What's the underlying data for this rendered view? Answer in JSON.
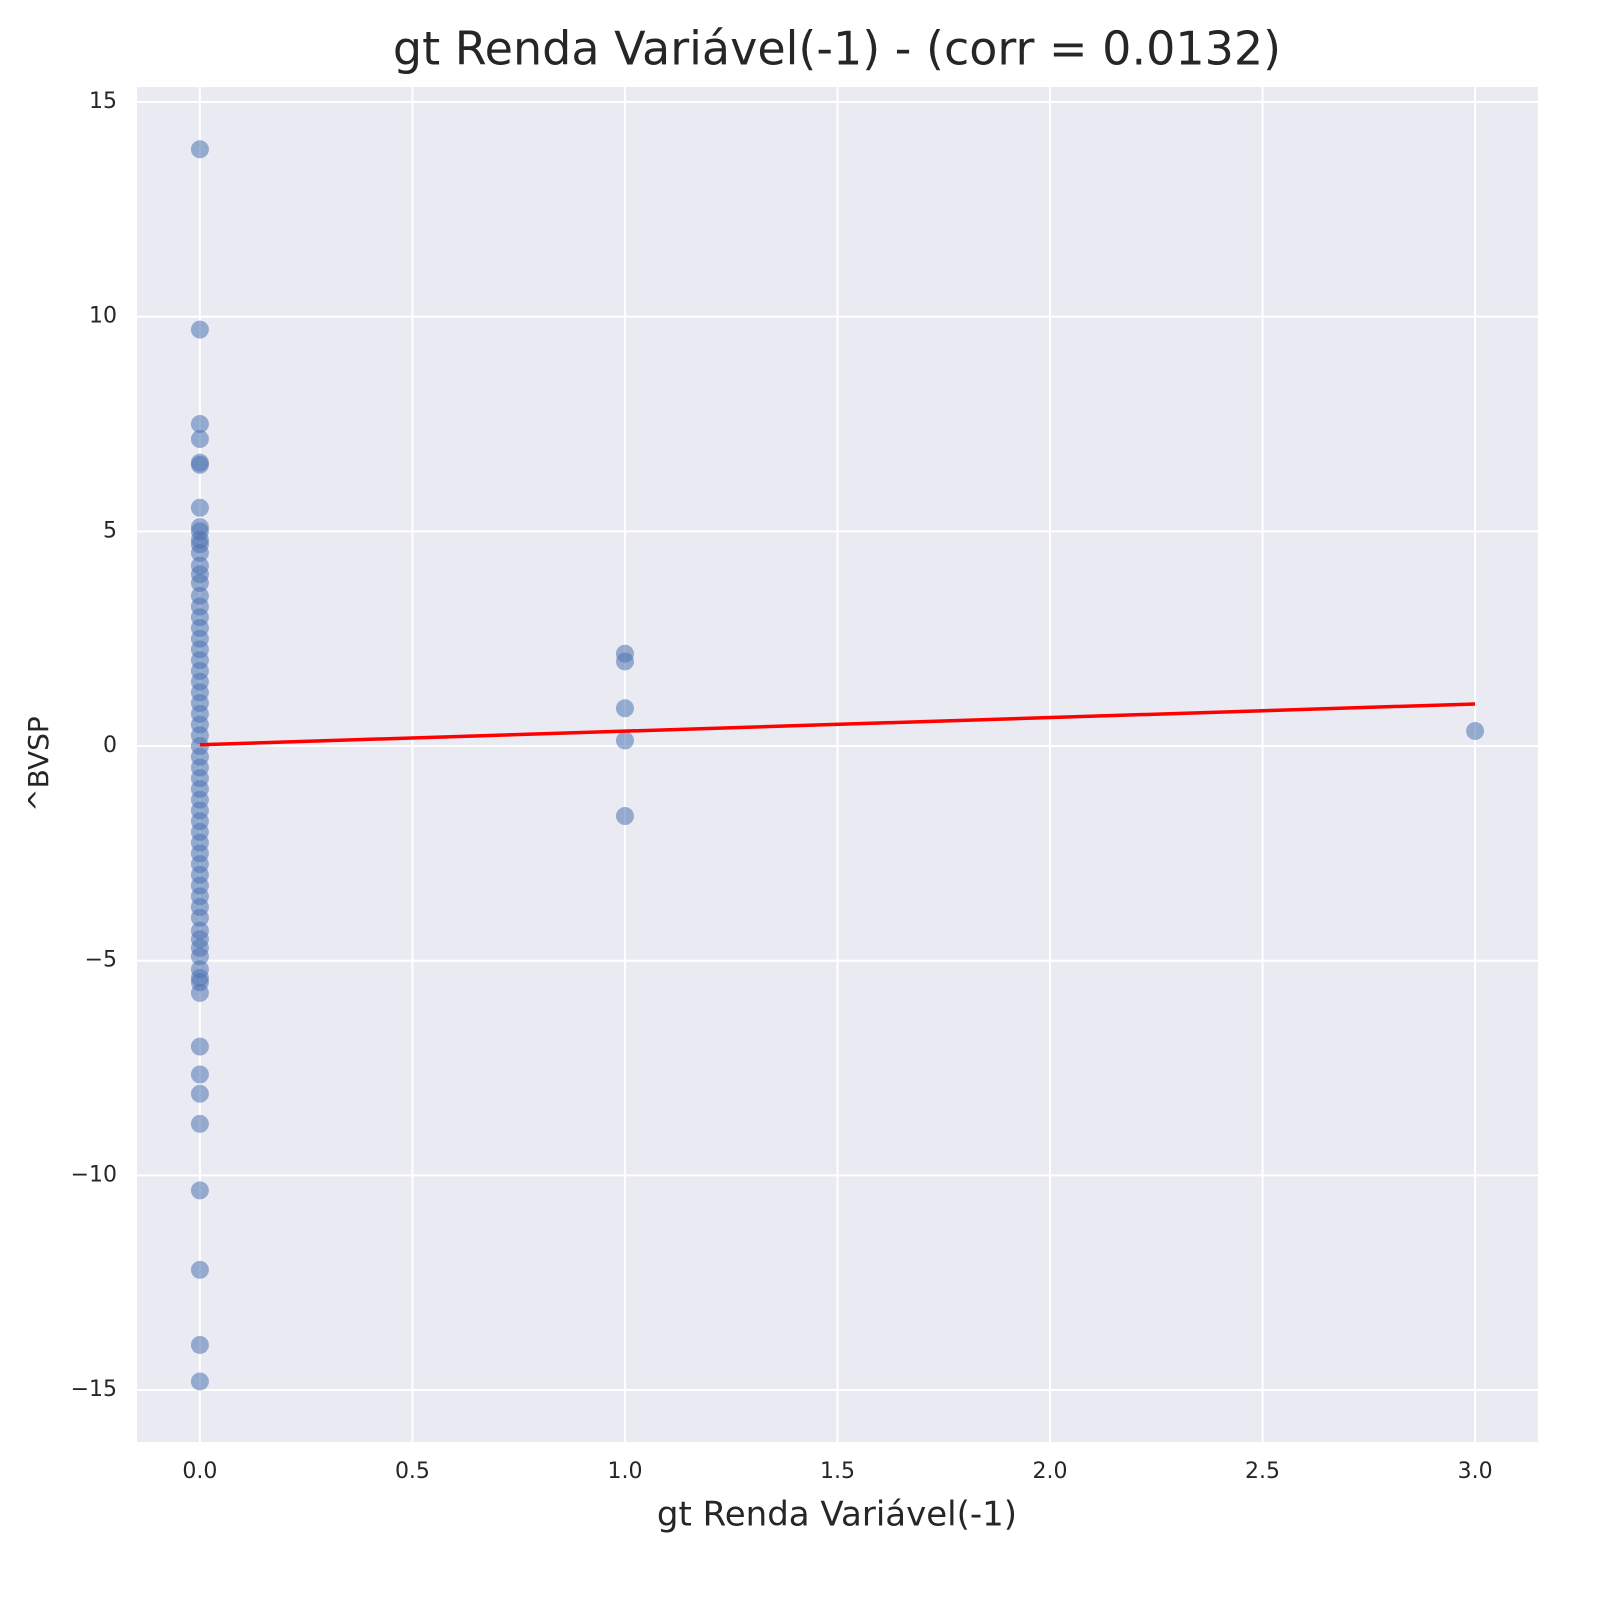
{
  "chart_data": {
    "type": "scatter",
    "title": "gt Renda Variável(-1) - (corr = 0.0132)",
    "x_label": "gt Renda Variável(-1)",
    "y_label": "^BVSP",
    "series": [
      {
        "color": "#4c72b0",
        "x": [
          0,
          0,
          0,
          0,
          0,
          0,
          0,
          0,
          0,
          0,
          0,
          0,
          0,
          0,
          0,
          0,
          0,
          0,
          0,
          0,
          0,
          0,
          0,
          0,
          0,
          0,
          0,
          0,
          0,
          0,
          0,
          0,
          0,
          0,
          0,
          0,
          0,
          0,
          0,
          0,
          0,
          0,
          0,
          0,
          0,
          0,
          0,
          0,
          0,
          0,
          0,
          0,
          0,
          0,
          0,
          0,
          0,
          0,
          0,
          0,
          0,
          0,
          1,
          1,
          1,
          1,
          1,
          3
        ],
        "y": [
          13.9,
          9.7,
          7.5,
          7.15,
          6.6,
          6.55,
          5.55,
          5.1,
          5.0,
          4.8,
          4.7,
          4.5,
          4.2,
          4.0,
          3.8,
          3.5,
          3.25,
          3.0,
          2.75,
          2.5,
          2.25,
          2.0,
          1.75,
          1.5,
          1.25,
          1.0,
          0.75,
          0.5,
          0.25,
          0,
          -0.25,
          -0.5,
          -0.75,
          -1.0,
          -1.25,
          -1.5,
          -1.75,
          -2.0,
          -2.25,
          -2.5,
          -2.75,
          -3.0,
          -3.25,
          -3.5,
          -3.75,
          -4.0,
          -4.3,
          -4.5,
          -4.7,
          -4.9,
          -5.2,
          -5.4,
          -5.5,
          -5.75,
          -7.0,
          -7.65,
          -8.1,
          -8.8,
          -10.35,
          -12.2,
          -13.95,
          -14.8,
          2.15,
          1.97,
          0.88,
          0.13,
          -1.63,
          0.35
        ]
      }
    ],
    "trend_line": {
      "color": "#ff0000",
      "x": [
        0,
        3
      ],
      "y": [
        0.03,
        0.98
      ]
    },
    "xlim": [
      -0.148,
      3.148
    ],
    "ylim": [
      -16.21,
      15.35
    ],
    "xticks": [
      {
        "value": 0,
        "label": "0.0"
      },
      0.5,
      {
        "value": 1,
        "label": "1.0"
      },
      1.5,
      {
        "value": 2,
        "label": "2.0"
      },
      2.5,
      {
        "value": 3,
        "label": "3.0"
      }
    ],
    "yticks": [
      {
        "value": -15,
        "label": "−15"
      },
      {
        "value": -10,
        "label": "−10"
      },
      {
        "value": -5,
        "label": "−5"
      },
      0,
      5,
      10,
      15
    ],
    "grid": true
  }
}
